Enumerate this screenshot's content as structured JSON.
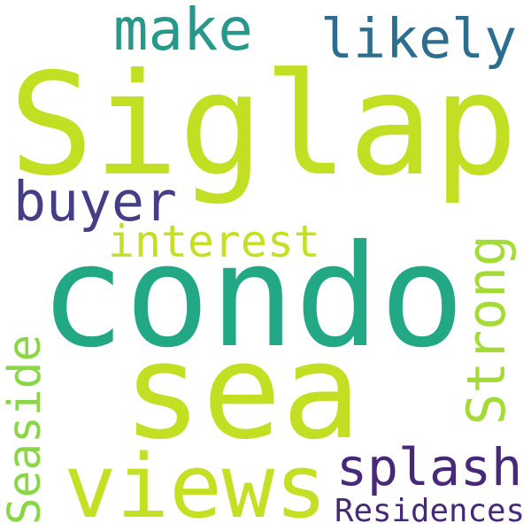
{
  "word_cloud": {
    "words": [
      {
        "text": "Siglap",
        "color": "#c2df23"
      },
      {
        "text": "condo",
        "color": "#22a884"
      },
      {
        "text": "sea",
        "color": "#c2df23"
      },
      {
        "text": "make",
        "color": "#27988a"
      },
      {
        "text": "likely",
        "color": "#2d6e8e"
      },
      {
        "text": "buyer",
        "color": "#433e85"
      },
      {
        "text": "interest",
        "color": "#c5df25"
      },
      {
        "text": "Strong",
        "color": "#a5db36"
      },
      {
        "text": "views",
        "color": "#c5df25"
      },
      {
        "text": "splash",
        "color": "#482878"
      },
      {
        "text": "Seaside",
        "color": "#8bd646"
      },
      {
        "text": "Residences",
        "color": "#482878"
      }
    ]
  }
}
